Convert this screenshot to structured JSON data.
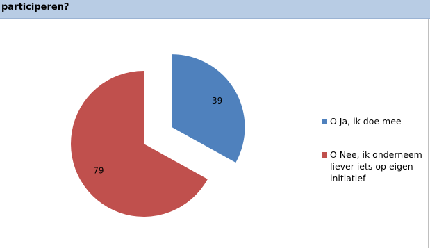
{
  "question": {
    "text": "participeren?"
  },
  "chart_data": {
    "type": "pie",
    "slices": [
      {
        "label": "O Ja, ik doe mee",
        "value": 39,
        "color": "#4f81bd",
        "exploded": true
      },
      {
        "label": "O Nee, ik onderneem liever iets op eigen initiatief",
        "value": 79,
        "color": "#c0504d",
        "exploded": false
      }
    ],
    "legend_position": "right"
  }
}
